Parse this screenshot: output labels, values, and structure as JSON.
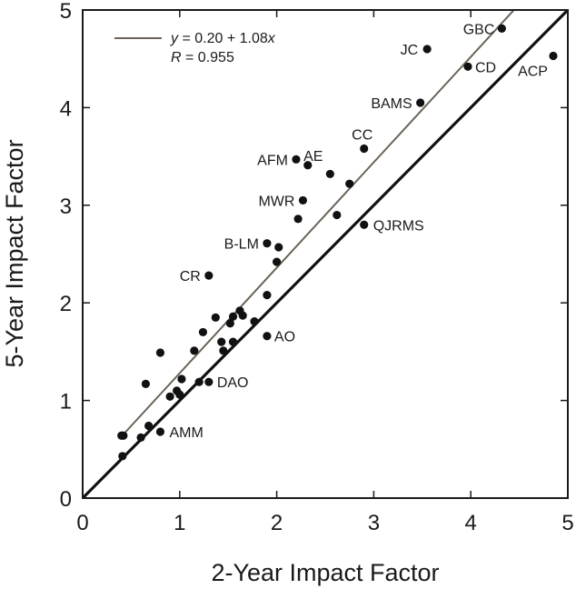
{
  "chart_data": {
    "type": "scatter",
    "title": "",
    "xlabel": "2-Year Impact Factor",
    "ylabel": "5-Year Impact Factor",
    "xlim": [
      0,
      5
    ],
    "ylim": [
      0,
      5
    ],
    "xticks": [
      0,
      1,
      2,
      3,
      4,
      5
    ],
    "yticks": [
      0,
      1,
      2,
      3,
      4,
      5
    ],
    "grid": false,
    "legend": {
      "placement": "top-left",
      "fit_line_text": "y = 0.20 + 1.08x",
      "fit_line_var_y": "y",
      "fit_line_eq_mid": " = 0.20 + 1.08",
      "fit_line_var_x": "x",
      "r_text": "R = 0.955",
      "r_var": "R",
      "r_eq": " = 0.955"
    },
    "lines": [
      {
        "role": "fit",
        "intercept": 0.2,
        "slope": 1.08,
        "x_range": [
          0.4,
          4.45
        ],
        "color": "#6b6358"
      },
      {
        "role": "one-to-one",
        "intercept": 0,
        "slope": 1,
        "x_range": [
          0,
          5
        ],
        "color": "#111111"
      }
    ],
    "points": [
      {
        "x": 4.85,
        "y": 4.53,
        "label": "ACP"
      },
      {
        "x": 4.32,
        "y": 4.81,
        "label": "GBC"
      },
      {
        "x": 3.97,
        "y": 4.42,
        "label": "CD"
      },
      {
        "x": 3.55,
        "y": 4.6,
        "label": "JC"
      },
      {
        "x": 3.48,
        "y": 4.05,
        "label": "BAMS"
      },
      {
        "x": 2.9,
        "y": 3.58,
        "label": "CC"
      },
      {
        "x": 2.2,
        "y": 3.47,
        "label": "AFM"
      },
      {
        "x": 2.32,
        "y": 3.41,
        "label": "AE"
      },
      {
        "x": 2.27,
        "y": 3.05,
        "label": "MWR"
      },
      {
        "x": 2.9,
        "y": 2.8,
        "label": "QJRMS"
      },
      {
        "x": 1.9,
        "y": 2.61,
        "label": "B-LM"
      },
      {
        "x": 1.3,
        "y": 2.28,
        "label": "CR"
      },
      {
        "x": 1.9,
        "y": 1.66,
        "label": "AO"
      },
      {
        "x": 1.3,
        "y": 1.19,
        "label": "DAO"
      },
      {
        "x": 0.8,
        "y": 0.68,
        "label": "AMM"
      },
      {
        "x": 2.55,
        "y": 3.32
      },
      {
        "x": 2.75,
        "y": 3.22
      },
      {
        "x": 2.62,
        "y": 2.9
      },
      {
        "x": 2.22,
        "y": 2.86
      },
      {
        "x": 2.02,
        "y": 2.57
      },
      {
        "x": 2.0,
        "y": 2.42
      },
      {
        "x": 1.9,
        "y": 2.08
      },
      {
        "x": 1.62,
        "y": 1.92
      },
      {
        "x": 1.65,
        "y": 1.87
      },
      {
        "x": 1.55,
        "y": 1.86
      },
      {
        "x": 1.52,
        "y": 1.79
      },
      {
        "x": 1.37,
        "y": 1.85
      },
      {
        "x": 1.77,
        "y": 1.81
      },
      {
        "x": 1.24,
        "y": 1.7
      },
      {
        "x": 1.43,
        "y": 1.6
      },
      {
        "x": 1.55,
        "y": 1.6
      },
      {
        "x": 1.45,
        "y": 1.51
      },
      {
        "x": 1.15,
        "y": 1.51
      },
      {
        "x": 0.8,
        "y": 1.49
      },
      {
        "x": 0.65,
        "y": 1.17
      },
      {
        "x": 1.02,
        "y": 1.22
      },
      {
        "x": 0.97,
        "y": 1.1
      },
      {
        "x": 0.9,
        "y": 1.04
      },
      {
        "x": 1.0,
        "y": 1.06
      },
      {
        "x": 1.2,
        "y": 1.19
      },
      {
        "x": 0.68,
        "y": 0.74
      },
      {
        "x": 0.6,
        "y": 0.62
      },
      {
        "x": 0.4,
        "y": 0.64
      },
      {
        "x": 0.42,
        "y": 0.64
      },
      {
        "x": 0.41,
        "y": 0.43
      }
    ]
  }
}
